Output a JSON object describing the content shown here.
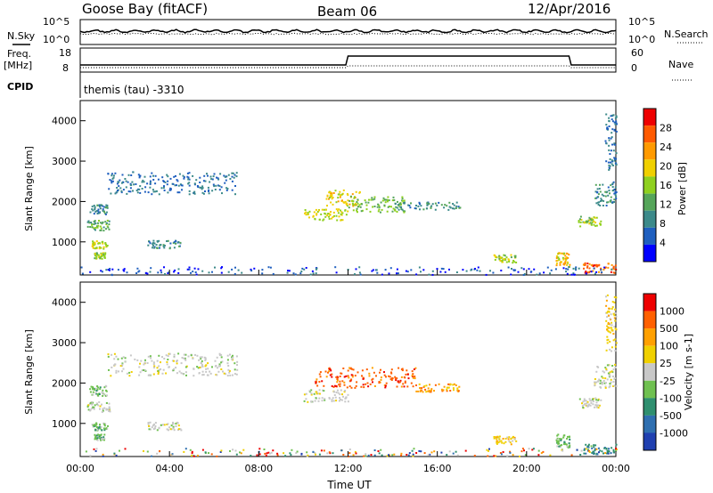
{
  "header": {
    "station": "Goose Bay (fitACF)",
    "beam": "Beam 06",
    "date": "12/Apr/2016"
  },
  "panels": {
    "nsky_label": "N.Sky",
    "nsearch_label": "N.Search",
    "freq_label": "Freq.",
    "freq_unit": "[MHz]",
    "nave_label": "Nave",
    "cpid_label": "CPID",
    "cpid_text": "themis (tau) -3310",
    "noise_ticks_left": [
      "10^5",
      "10^0"
    ],
    "noise_ticks_right": [
      "10^5",
      "10^0"
    ],
    "freq_ticks": [
      "18",
      "8"
    ],
    "nave_ticks": [
      "60",
      "0"
    ]
  },
  "colors": {
    "power": [
      "#0000ff",
      "#1f5fbf",
      "#3c8a8a",
      "#55a55a",
      "#8fd01f",
      "#f0d000",
      "#ff9a00",
      "#ff5a00",
      "#ee0000"
    ],
    "velocity": [
      "#2040b0",
      "#2f6fb0",
      "#2f8f6f",
      "#6fc050",
      "#c8c8c8",
      "#f0d000",
      "#ffa000",
      "#ff6000",
      "#ee0000"
    ]
  },
  "chart_data": [
    {
      "type": "heatmap",
      "title": "",
      "xlabel": "",
      "ylabel": "Slant Range [km]",
      "xlim": [
        0,
        24
      ],
      "ylim": [
        180,
        4500
      ],
      "y_ticks": [
        "4000",
        "3000",
        "2000",
        "1000"
      ],
      "colorbar": {
        "label": "Power [dB]",
        "ticks": [
          "28",
          "24",
          "20",
          "16",
          "12",
          "8",
          "4"
        ],
        "range": [
          0,
          32
        ]
      },
      "regions": [
        {
          "t0": 0.3,
          "t1": 1.3,
          "r0": 1300,
          "r1": 1550,
          "v": 12
        },
        {
          "t0": 0.4,
          "t1": 1.2,
          "r0": 1700,
          "r1": 1950,
          "v": 8
        },
        {
          "t0": 0.5,
          "t1": 1.2,
          "r0": 850,
          "r1": 1050,
          "v": 18
        },
        {
          "t0": 0.6,
          "t1": 1.1,
          "r0": 600,
          "r1": 750,
          "v": 16
        },
        {
          "t0": 1.2,
          "t1": 7.0,
          "r0": 2200,
          "r1": 2750,
          "v": 6
        },
        {
          "t0": 3.0,
          "t1": 4.5,
          "r0": 850,
          "r1": 1050,
          "v": 8
        },
        {
          "t0": 10.0,
          "t1": 12.0,
          "r0": 1550,
          "r1": 1850,
          "v": 18
        },
        {
          "t0": 11.0,
          "t1": 12.5,
          "r0": 1900,
          "r1": 2300,
          "v": 20
        },
        {
          "t0": 12.0,
          "t1": 14.5,
          "r0": 1750,
          "r1": 2150,
          "v": 14
        },
        {
          "t0": 14.0,
          "t1": 17.0,
          "r0": 1800,
          "r1": 2000,
          "v": 8
        },
        {
          "t0": 18.5,
          "t1": 19.5,
          "r0": 500,
          "r1": 700,
          "v": 16
        },
        {
          "t0": 21.3,
          "t1": 21.9,
          "r0": 400,
          "r1": 750,
          "v": 20
        },
        {
          "t0": 22.3,
          "t1": 23.3,
          "r0": 1400,
          "r1": 1650,
          "v": 16
        },
        {
          "t0": 22.5,
          "t1": 24.0,
          "r0": 250,
          "r1": 500,
          "v": 28
        },
        {
          "t0": 23.0,
          "t1": 24.0,
          "r0": 1900,
          "r1": 2500,
          "v": 8
        },
        {
          "t0": 23.5,
          "t1": 24.0,
          "r0": 2800,
          "r1": 4200,
          "v": 6
        }
      ]
    },
    {
      "type": "heatmap",
      "title": "",
      "xlabel": "Time UT",
      "ylabel": "Slant Range [km]",
      "xlim": [
        0,
        24
      ],
      "ylim": [
        180,
        4500
      ],
      "x_ticks": [
        "00:00",
        "04:00",
        "08:00",
        "12:00",
        "16:00",
        "20:00",
        "00:00"
      ],
      "y_ticks": [
        "4000",
        "3000",
        "2000",
        "1000"
      ],
      "colorbar": {
        "label": "Velocity [m s-1]",
        "ticks": [
          "1000",
          "500",
          "100",
          "25",
          "-25",
          "-100",
          "-500",
          "-1000"
        ],
        "bins": 9
      },
      "regions": [
        {
          "t0": 0.3,
          "t1": 1.3,
          "r0": 1300,
          "r1": 1550,
          "v": 4
        },
        {
          "t0": 0.4,
          "t1": 1.2,
          "r0": 1700,
          "r1": 1950,
          "v": 3
        },
        {
          "t0": 0.5,
          "t1": 1.2,
          "r0": 850,
          "r1": 1050,
          "v": 3
        },
        {
          "t0": 0.6,
          "t1": 1.1,
          "r0": 600,
          "r1": 750,
          "v": 3
        },
        {
          "t0": 1.2,
          "t1": 7.0,
          "r0": 2200,
          "r1": 2750,
          "v": 4
        },
        {
          "t0": 3.0,
          "t1": 4.5,
          "r0": 850,
          "r1": 1050,
          "v": 4
        },
        {
          "t0": 10.0,
          "t1": 12.0,
          "r0": 1550,
          "r1": 1850,
          "v": 4
        },
        {
          "t0": 10.5,
          "t1": 15.0,
          "r0": 1900,
          "r1": 2400,
          "v": 7
        },
        {
          "t0": 15.0,
          "t1": 17.0,
          "r0": 1800,
          "r1": 2000,
          "v": 6
        },
        {
          "t0": 18.5,
          "t1": 19.5,
          "r0": 500,
          "r1": 700,
          "v": 5
        },
        {
          "t0": 21.3,
          "t1": 21.9,
          "r0": 400,
          "r1": 750,
          "v": 3
        },
        {
          "t0": 22.3,
          "t1": 23.3,
          "r0": 1400,
          "r1": 1650,
          "v": 4
        },
        {
          "t0": 22.5,
          "t1": 24.0,
          "r0": 250,
          "r1": 500,
          "v": 2
        },
        {
          "t0": 23.0,
          "t1": 24.0,
          "r0": 1900,
          "r1": 2500,
          "v": 4
        },
        {
          "t0": 23.5,
          "t1": 24.0,
          "r0": 2800,
          "r1": 4200,
          "v": 5
        }
      ]
    }
  ]
}
